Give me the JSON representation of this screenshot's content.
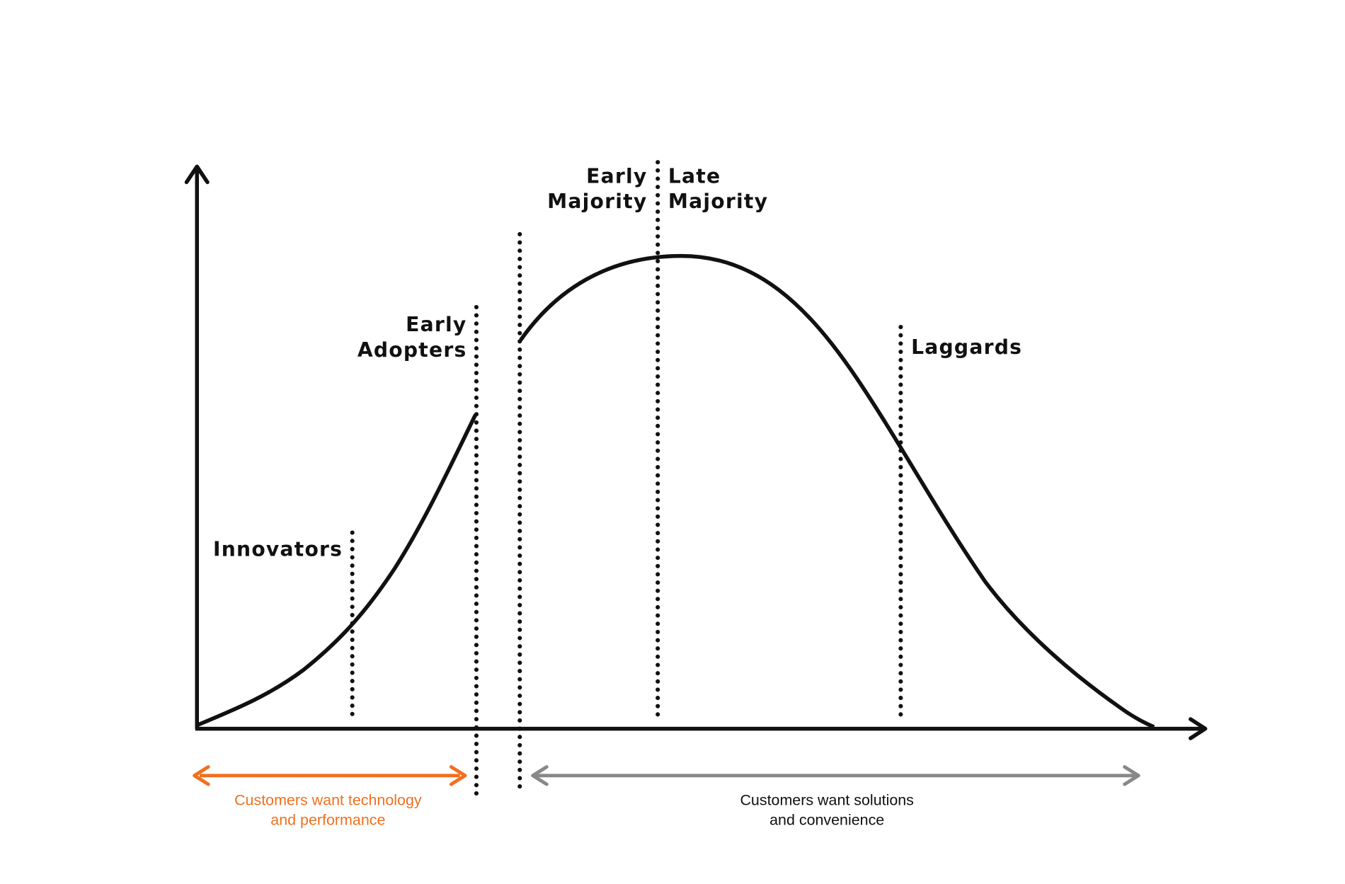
{
  "segments": [
    {
      "lines": [
        "Innovators"
      ]
    },
    {
      "lines": [
        "Early",
        "Adopters"
      ]
    },
    {
      "lines": [
        "Early",
        "Majority"
      ]
    },
    {
      "lines": [
        "Late",
        "Majority"
      ]
    },
    {
      "lines": [
        "Laggards"
      ]
    }
  ],
  "notes": [
    {
      "lines": [
        "Customers want technology",
        "and performance"
      ]
    },
    {
      "lines": [
        "Customers want solutions",
        "and convenience"
      ]
    }
  ]
}
